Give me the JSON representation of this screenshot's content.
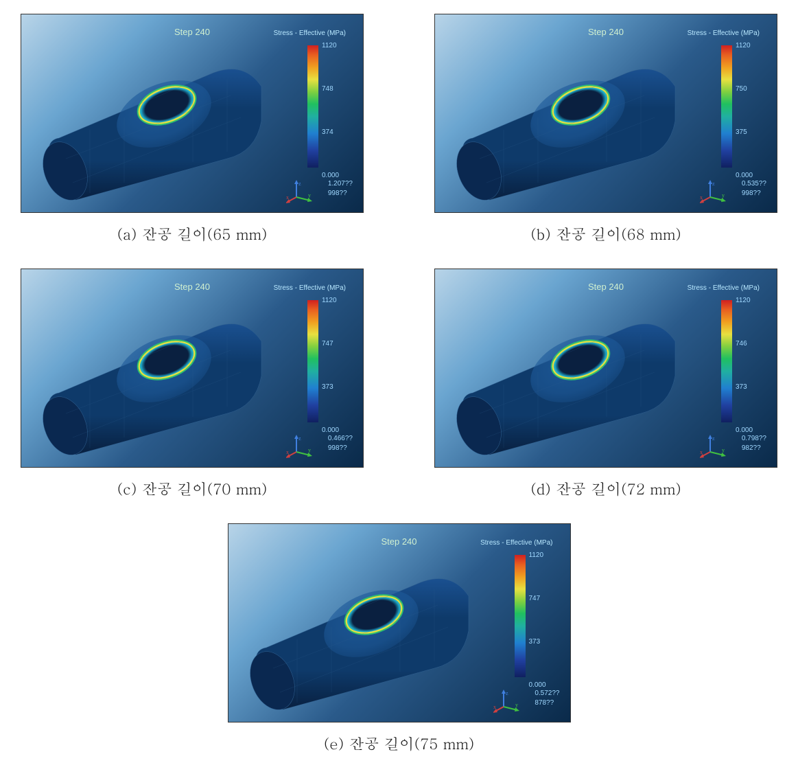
{
  "panels": [
    {
      "caption": "(a) 잔공 길이(65 mm)",
      "step": "Step 240",
      "legendTitle": "Stress - Effective (MPa)",
      "ticks": [
        "1120",
        "748",
        "374",
        "0.000"
      ],
      "extra": [
        "1.207??",
        "998??"
      ]
    },
    {
      "caption": "(b) 잔공 길이(68 mm)",
      "step": "Step 240",
      "legendTitle": "Stress - Effective (MPa)",
      "ticks": [
        "1120",
        "750",
        "375",
        "0.000"
      ],
      "extra": [
        "0.535??",
        "998??"
      ]
    },
    {
      "caption": "(c) 잔공 길이(70 mm)",
      "step": "Step 240",
      "legendTitle": "Stress - Effective (MPa)",
      "ticks": [
        "1120",
        "747",
        "373",
        "0.000"
      ],
      "extra": [
        "0.466??",
        "998??"
      ]
    },
    {
      "caption": "(d) 잔공 길이(72 mm)",
      "step": "Step 240",
      "legendTitle": "Stress - Effective (MPa)",
      "ticks": [
        "1120",
        "746",
        "373",
        "0.000"
      ],
      "extra": [
        "0.798??",
        "982??"
      ]
    },
    {
      "caption": "(e) 잔공 길이(75 mm)",
      "step": "Step 240",
      "legendTitle": "Stress - Effective (MPa)",
      "ticks": [
        "1120",
        "747",
        "373",
        "0.000"
      ],
      "extra": [
        "0.572??",
        "878??"
      ]
    }
  ],
  "colors": {
    "cylinder_body": "#0e3a6a",
    "cylinder_body_light": "#1a5090",
    "cylinder_face": "#0a2850",
    "hole_rim_outer": "#e8e040",
    "hole_rim_mid": "#30c070",
    "hole_rim_inner": "#20b0d0",
    "hole_inside": "#0a2040",
    "stress_zone": "#1e5a9a",
    "mesh_line": "#306090",
    "axis_x": "#d04040",
    "axis_y": "#40c040",
    "axis_z": "#4080e0"
  }
}
